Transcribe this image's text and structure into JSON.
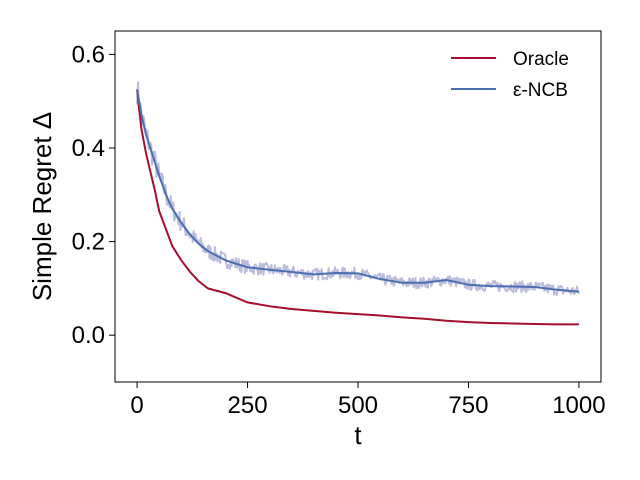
{
  "chart_data": {
    "type": "line",
    "xlabel": "t",
    "ylabel": "Simple Regret Δ",
    "xlim": [
      -50,
      1050
    ],
    "ylim": [
      -0.1,
      0.65
    ],
    "xticks": [
      0,
      250,
      500,
      750,
      1000
    ],
    "xtick_labels": [
      "0",
      "250",
      "500",
      "750",
      "1000"
    ],
    "yticks": [
      0.0,
      0.2,
      0.4,
      0.6
    ],
    "ytick_labels": [
      "0.0",
      "0.2",
      "0.4",
      "0.6"
    ],
    "grid": false,
    "legend_position": "top-right",
    "series": [
      {
        "name": "Oracle",
        "color": "#a50f2d",
        "x": [
          0,
          5,
          10,
          20,
          30,
          40,
          50,
          60,
          70,
          80,
          100,
          120,
          140,
          160,
          200,
          250,
          300,
          350,
          400,
          450,
          500,
          550,
          600,
          650,
          700,
          750,
          800,
          850,
          900,
          950,
          1000
        ],
        "y": [
          0.525,
          0.48,
          0.44,
          0.39,
          0.35,
          0.31,
          0.265,
          0.24,
          0.215,
          0.19,
          0.16,
          0.135,
          0.115,
          0.1,
          0.09,
          0.07,
          0.062,
          0.056,
          0.052,
          0.048,
          0.045,
          0.042,
          0.038,
          0.035,
          0.031,
          0.028,
          0.026,
          0.025,
          0.024,
          0.023,
          0.023
        ]
      },
      {
        "name": "ε-NCB",
        "color": "#4a6fb0",
        "x": [
          0,
          10,
          20,
          30,
          40,
          50,
          60,
          70,
          80,
          100,
          120,
          140,
          160,
          180,
          200,
          250,
          300,
          350,
          400,
          450,
          500,
          550,
          600,
          650,
          700,
          750,
          800,
          850,
          900,
          950,
          1000
        ],
        "y": [
          0.525,
          0.47,
          0.43,
          0.4,
          0.37,
          0.34,
          0.315,
          0.29,
          0.27,
          0.24,
          0.215,
          0.195,
          0.18,
          0.17,
          0.16,
          0.145,
          0.14,
          0.135,
          0.13,
          0.133,
          0.132,
          0.12,
          0.112,
          0.112,
          0.118,
          0.108,
          0.105,
          0.104,
          0.103,
          0.097,
          0.093
        ]
      }
    ],
    "band_color": "#bcbcdc"
  }
}
